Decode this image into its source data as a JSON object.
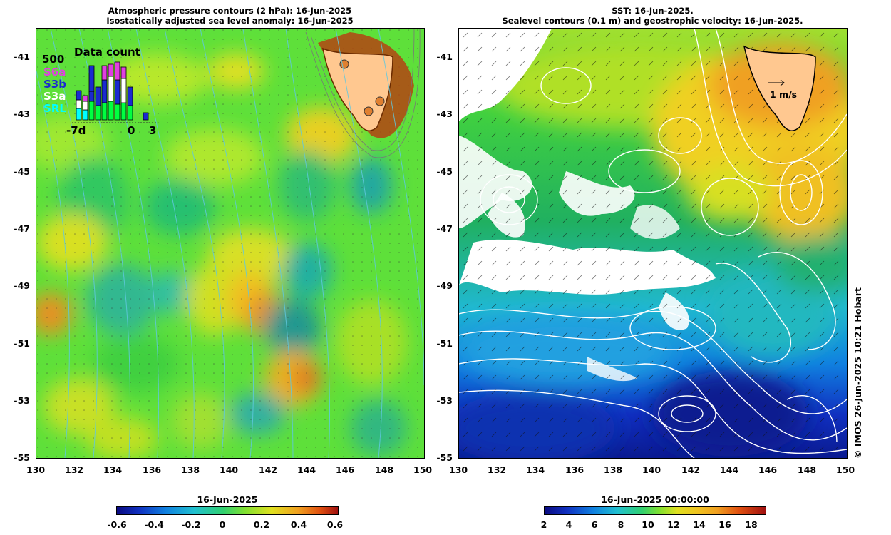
{
  "left_panel": {
    "title_line1": "Atmospheric pressure contours (2 hPa): 16-Jun-2025",
    "title_line2": "Isostatically adjusted sea level anomaly: 16-Jun-2025",
    "inset": {
      "title": "Data count",
      "max_label": "500",
      "missions": [
        "S6a",
        "S3b",
        "S3a",
        "SRL"
      ],
      "mission_colors": [
        "#e040e0",
        "#1a2ad0",
        "#ffffff",
        "#00ffff"
      ],
      "x_labels": [
        "-7d",
        "0",
        "3"
      ]
    },
    "colorbar": {
      "title": "16-Jun-2025",
      "labels": [
        "-0.6",
        "-0.4",
        "-0.2",
        "0",
        "0.2",
        "0.4",
        "0.6"
      ]
    }
  },
  "right_panel": {
    "title_line1": "SST: 16-Jun-2025.",
    "title_line2": "Sealevel contours (0.1 m) and geostrophic velocity: 16-Jun-2025.",
    "velocity_scale_label": "1 m/s",
    "colorbar": {
      "title": "16-Jun-2025 00:00:00",
      "labels": [
        "2",
        "4",
        "6",
        "8",
        "10",
        "12",
        "14",
        "16",
        "18"
      ]
    }
  },
  "axes": {
    "lat_labels": [
      "-41",
      "-43",
      "-45",
      "-47",
      "-49",
      "-51",
      "-53",
      "-55"
    ],
    "lon_labels": [
      "130",
      "132",
      "134",
      "136",
      "138",
      "140",
      "142",
      "144",
      "146",
      "148",
      "150"
    ]
  },
  "credit": "© IMOS 26-Jun-2025 10:21 Hobart"
}
